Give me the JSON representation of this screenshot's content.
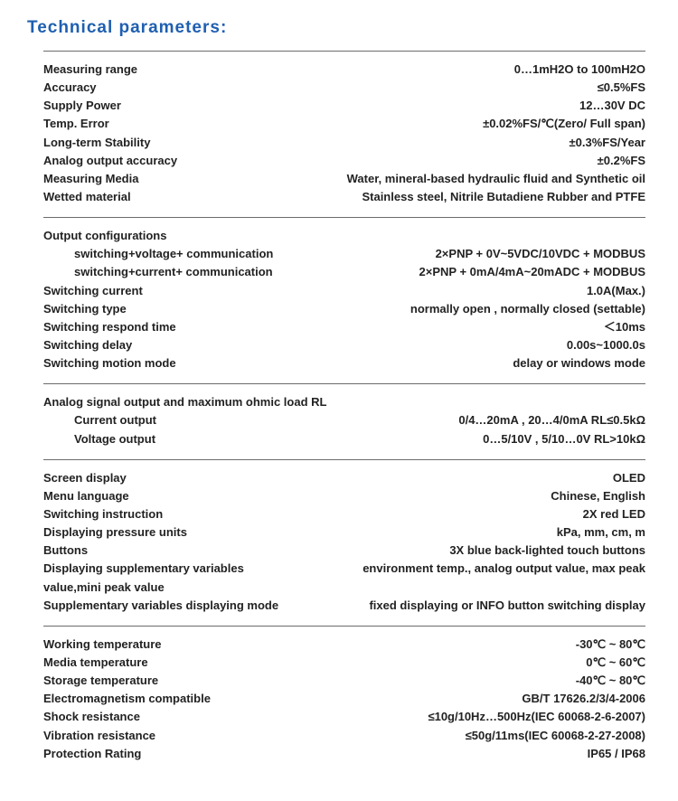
{
  "title": "Technical parameters:",
  "title_color": "#1f5fb0",
  "title_fontsize": 19,
  "row_fontsize": 13,
  "text_color": "#222222",
  "border_color": "#6b6b6b",
  "sections": [
    {
      "rows": [
        {
          "label": "Measuring range",
          "value": "0…1mH2O to 100mH2O"
        },
        {
          "label": "Accuracy",
          "value": "≤0.5%FS"
        },
        {
          "label": "Supply Power",
          "value": "12…30V DC"
        },
        {
          "label": "Temp. Error",
          "value": "±0.02%FS/℃(Zero/ Full span)"
        },
        {
          "label": "Long-term Stability",
          "value": "±0.3%FS/Year"
        },
        {
          "label": "Analog output accuracy",
          "value": "±0.2%FS"
        },
        {
          "label": "Measuring Media",
          "value": "Water, mineral-based hydraulic fluid and Synthetic oil"
        },
        {
          "label": "Wetted material",
          "value": "Stainless steel, Nitrile Butadiene Rubber and PTFE"
        }
      ]
    },
    {
      "rows": [
        {
          "label": "Output configurations",
          "value": "",
          "subhead": true
        },
        {
          "label": "switching+voltage+ communication",
          "value": "2×PNP + 0V~5VDC/10VDC + MODBUS",
          "indent": true
        },
        {
          "label": "switching+current+ communication",
          "value": "2×PNP + 0mA/4mA~20mADC + MODBUS",
          "indent": true
        },
        {
          "label": "Switching current",
          "value": "1.0A(Max.)"
        },
        {
          "label": "Switching type",
          "value": "normally open , normally closed (settable)"
        },
        {
          "label": "Switching respond  time",
          "value": "＜10ms"
        },
        {
          "label": "Switching  delay",
          "value": "0.00s~1000.0s"
        },
        {
          "label": "Switching motion mode",
          "value": "delay or windows mode"
        }
      ]
    },
    {
      "rows": [
        {
          "label": "Analog signal output and maximum ohmic load RL",
          "value": "",
          "subhead": true
        },
        {
          "label": "Current output",
          "value": "0/4…20mA , 20…4/0mA  RL≤0.5kΩ",
          "indent": true
        },
        {
          "label": "Voltage output",
          "value": "0…5/10V , 5/10…0V  RL>10kΩ",
          "indent": true
        }
      ]
    },
    {
      "rows": [
        {
          "label": "Screen display",
          "value": "OLED"
        },
        {
          "label": "Menu language",
          "value": "Chinese, English"
        },
        {
          "label": "Switching instruction",
          "value": "2X red LED"
        },
        {
          "label": "Displaying pressure units",
          "value": "kPa, mm, cm, m"
        },
        {
          "label": "Buttons",
          "value": "3X blue back-lighted touch buttons"
        },
        {
          "label": "Displaying supplementary variables",
          "value": "environment temp., analog output value, max peak"
        },
        {
          "label": "value,mini peak value",
          "value": "",
          "subhead": true
        },
        {
          "label": "Supplementary variables displaying mode",
          "value": "fixed displaying or INFO button switching display"
        }
      ]
    },
    {
      "rows": [
        {
          "label": "Working temperature",
          "value": "-30℃ ~ 80℃"
        },
        {
          "label": "Media temperature",
          "value": "0℃ ~ 60℃"
        },
        {
          "label": "Storage temperature",
          "value": "-40℃ ~ 80℃"
        },
        {
          "label": "Electromagnetism compatible",
          "value": "GB/T 17626.2/3/4-2006"
        },
        {
          "label": "Shock resistance",
          "value": "≤10g/10Hz…500Hz(IEC 60068-2-6-2007)"
        },
        {
          "label": "Vibration resistance",
          "value": "≤50g/11ms(IEC 60068-2-27-2008)"
        },
        {
          "label": "Protection Rating",
          "value": "IP65 / IP68"
        }
      ]
    }
  ]
}
